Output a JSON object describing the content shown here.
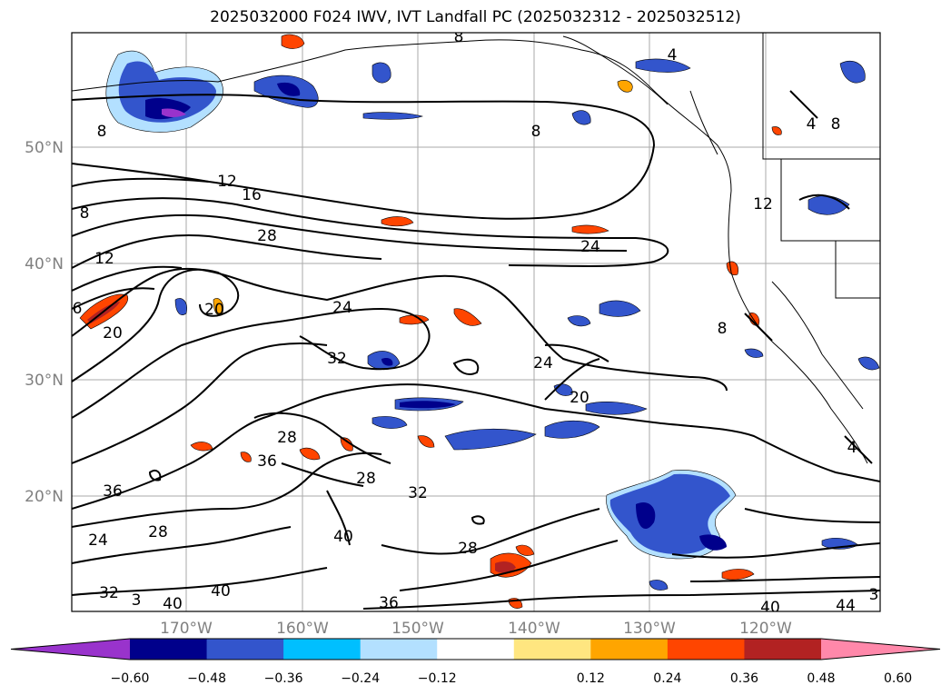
{
  "title": "2025032000 F024 IWV, IVT Landfall PC (2025032312 - 2025032512)",
  "latitude_labels": [
    "50°N",
    "40°N",
    "30°N",
    "20°N"
  ],
  "longitude_labels": [
    "170°W",
    "160°W",
    "150°W",
    "140°W",
    "130°W",
    "120°W"
  ],
  "colorbar": {
    "ticks": [
      "−0.60",
      "−0.48",
      "−0.36",
      "−0.24",
      "−0.12",
      "0.12",
      "0.24",
      "0.36",
      "0.48",
      "0.60"
    ],
    "colors": [
      "#9933cc",
      "#00008b",
      "#3355cc",
      "#00bfff",
      "#b3e0ff",
      "#ffffff",
      "#ffe680",
      "#ffa500",
      "#ff4500",
      "#b22222",
      "#ff88aa"
    ],
    "extend": "both"
  },
  "contour_labels": [
    "8",
    "8",
    "4",
    "4",
    "8",
    "8",
    "12",
    "16",
    "28",
    "24",
    "12",
    "8",
    "12",
    "6",
    "20",
    "20",
    "24",
    "32",
    "24",
    "20",
    "8",
    "28",
    "36",
    "28",
    "32",
    "36",
    "28",
    "24",
    "40",
    "28",
    "32",
    "3",
    "40",
    "36",
    "40",
    "40",
    "44",
    "3",
    "4"
  ],
  "colors": {
    "land_border": "#000000",
    "grid": "#aaaaaa",
    "contour": "#000000"
  }
}
